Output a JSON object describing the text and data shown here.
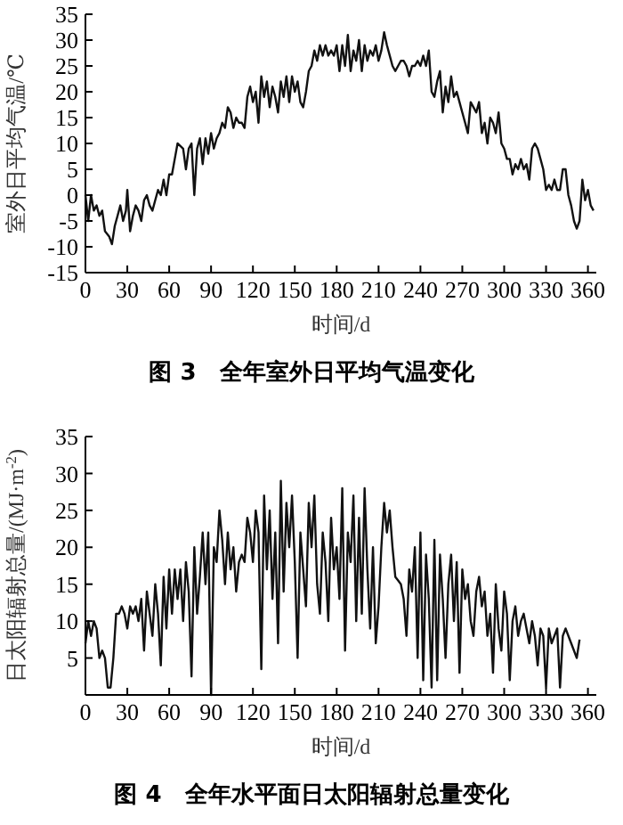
{
  "chart_data": [
    {
      "type": "line",
      "title": "图 3　全年室外日平均气温变化",
      "xlabel": "时间/d",
      "ylabel": "室外日平均气温/℃",
      "color": "#111111",
      "xlim": [
        0,
        366
      ],
      "xticks": [
        0,
        30,
        60,
        90,
        120,
        150,
        180,
        210,
        240,
        270,
        300,
        330,
        360
      ],
      "ylim": [
        -15,
        35
      ],
      "yticks": [
        -15,
        -10,
        -5,
        0,
        5,
        10,
        15,
        20,
        25,
        30,
        35
      ],
      "x": [
        0,
        2,
        4,
        6,
        8,
        10,
        12,
        14,
        17,
        19,
        21,
        23,
        25,
        27,
        29,
        30,
        32,
        34,
        36,
        38,
        40,
        42,
        44,
        46,
        48,
        50,
        52,
        54,
        56,
        58,
        60,
        62,
        64,
        66,
        68,
        70,
        72,
        74,
        76,
        78,
        80,
        82,
        84,
        86,
        88,
        90,
        92,
        94,
        96,
        98,
        100,
        102,
        104,
        106,
        108,
        110,
        112,
        114,
        116,
        118,
        120,
        122,
        124,
        126,
        128,
        130,
        132,
        134,
        136,
        138,
        140,
        142,
        144,
        146,
        148,
        150,
        152,
        154,
        156,
        158,
        160,
        162,
        164,
        166,
        168,
        170,
        172,
        174,
        176,
        178,
        180,
        182,
        184,
        186,
        188,
        190,
        192,
        194,
        196,
        198,
        200,
        202,
        204,
        206,
        208,
        210,
        212,
        214,
        216,
        218,
        220,
        222,
        224,
        226,
        228,
        230,
        232,
        234,
        236,
        238,
        240,
        242,
        244,
        246,
        248,
        250,
        252,
        254,
        256,
        258,
        260,
        262,
        264,
        266,
        268,
        270,
        272,
        274,
        276,
        278,
        280,
        282,
        284,
        286,
        288,
        290,
        292,
        294,
        296,
        298,
        300,
        302,
        304,
        306,
        308,
        310,
        312,
        314,
        316,
        318,
        320,
        322,
        324,
        326,
        328,
        330,
        332,
        334,
        336,
        338,
        340,
        342,
        344,
        346,
        348,
        350,
        352,
        354,
        356,
        358,
        360,
        362,
        364
      ],
      "values": [
        0,
        -5,
        0,
        -3,
        -2,
        -4,
        -3,
        -7,
        -8,
        -9.5,
        -6,
        -4,
        -2,
        -5,
        -3,
        1,
        -7,
        -4,
        -2,
        -3,
        -5,
        -1,
        0,
        -2,
        -3,
        -1,
        1,
        0,
        3,
        0,
        4,
        4,
        7,
        10,
        9.5,
        9,
        5,
        9,
        10,
        0,
        9,
        11,
        6,
        11,
        8,
        12,
        9,
        11,
        12,
        14,
        13,
        17,
        16,
        13,
        15,
        14,
        14,
        13,
        19,
        21,
        18,
        20,
        14,
        23,
        19,
        22,
        17,
        21,
        19,
        16,
        22,
        19,
        23,
        18,
        23,
        20,
        22,
        18,
        17,
        20,
        24,
        25,
        28,
        26,
        29,
        27,
        29,
        27,
        28,
        27,
        29,
        24,
        29,
        25,
        31,
        24,
        28,
        26,
        30,
        24,
        29,
        26,
        28,
        27,
        29,
        26,
        28,
        31.5,
        29,
        27,
        25,
        24,
        25,
        26,
        26,
        25,
        23,
        25,
        25,
        26,
        25,
        27,
        25,
        28,
        20,
        19,
        22,
        24,
        16,
        21,
        18,
        23,
        19,
        20,
        18,
        16,
        14,
        12,
        18,
        17,
        16,
        18,
        12,
        14,
        10,
        15,
        14,
        12,
        16,
        10,
        9,
        7,
        7,
        4,
        6,
        5,
        7,
        5,
        6,
        3,
        9,
        10,
        9,
        7,
        5,
        1,
        2,
        1,
        3,
        1,
        1,
        5,
        5,
        0,
        -2,
        -5,
        -6.5,
        -5,
        3,
        -1,
        1,
        -2,
        -3
      ]
    },
    {
      "type": "line",
      "title": "图 4　全年水平面日太阳辐射总量变化",
      "xlabel": "时间/d",
      "ylabel": "日太阳辐射总量/(MJ·m$^{-2}$)",
      "color": "#111111",
      "xlim": [
        0,
        366
      ],
      "xticks": [
        0,
        30,
        60,
        90,
        120,
        150,
        180,
        210,
        240,
        270,
        300,
        330,
        360
      ],
      "ylim": [
        0,
        35
      ],
      "yticks": [
        5,
        10,
        15,
        20,
        25,
        30,
        35
      ],
      "x": [
        0,
        2,
        4,
        6,
        8,
        10,
        12,
        14,
        16,
        18,
        20,
        22,
        24,
        26,
        28,
        30,
        32,
        34,
        36,
        38,
        40,
        42,
        44,
        46,
        48,
        50,
        52,
        54,
        56,
        58,
        60,
        62,
        64,
        66,
        68,
        70,
        72,
        74,
        76,
        78,
        80,
        82,
        84,
        86,
        88,
        90,
        92,
        94,
        96,
        98,
        100,
        102,
        104,
        106,
        108,
        110,
        112,
        114,
        116,
        118,
        120,
        122,
        124,
        126,
        128,
        130,
        132,
        134,
        136,
        138,
        140,
        142,
        144,
        146,
        148,
        150,
        152,
        154,
        156,
        158,
        160,
        162,
        164,
        166,
        168,
        170,
        172,
        174,
        176,
        178,
        180,
        182,
        184,
        186,
        188,
        190,
        192,
        194,
        196,
        198,
        200,
        202,
        204,
        206,
        208,
        210,
        212,
        214,
        216,
        218,
        220,
        222,
        224,
        226,
        228,
        230,
        232,
        234,
        236,
        238,
        240,
        242,
        244,
        246,
        248,
        250,
        252,
        254,
        256,
        258,
        260,
        262,
        264,
        266,
        268,
        270,
        272,
        274,
        276,
        278,
        280,
        282,
        284,
        286,
        288,
        290,
        292,
        294,
        296,
        298,
        300,
        302,
        304,
        306,
        308,
        310,
        312,
        314,
        316,
        318,
        320,
        322,
        324,
        326,
        328,
        330,
        332,
        334,
        336,
        338,
        340,
        342,
        344,
        346,
        348,
        350,
        352,
        354
      ],
      "values": [
        7,
        10,
        8,
        10,
        9,
        5,
        6,
        5,
        1,
        1,
        5,
        11,
        11,
        12,
        11,
        9,
        12,
        11,
        12,
        10,
        13,
        6,
        14,
        11,
        8,
        15,
        11,
        4,
        16,
        9,
        17,
        11,
        17,
        13,
        17,
        10,
        18,
        14,
        2.5,
        20,
        11,
        16,
        22,
        15,
        22,
        0,
        20,
        18,
        25,
        21,
        15,
        22,
        17,
        20,
        14,
        18,
        19,
        18,
        24,
        22,
        18,
        25,
        22,
        3.5,
        27,
        17,
        25,
        13,
        22,
        7,
        29,
        14,
        26,
        20,
        27,
        18,
        5,
        22,
        17,
        12,
        26,
        20,
        27,
        15,
        11,
        22,
        18,
        10,
        24,
        17,
        20,
        13,
        28,
        6,
        22,
        18,
        27,
        10,
        24,
        11,
        28,
        17,
        9,
        20,
        7,
        12,
        20,
        26,
        22,
        25,
        20,
        16,
        15.5,
        15,
        13,
        8,
        17,
        14,
        20,
        5,
        22,
        2,
        19,
        13,
        1,
        21,
        2,
        19,
        13,
        5,
        15,
        19,
        10,
        18,
        3,
        17,
        13,
        15,
        10,
        8,
        14,
        16,
        12,
        14,
        8,
        11,
        3,
        15,
        9,
        6,
        14,
        11,
        2,
        10,
        12,
        8,
        10,
        11,
        9,
        7,
        10,
        8,
        4,
        9,
        8,
        1,
        9,
        7,
        8,
        9,
        1,
        8,
        9,
        8,
        7,
        6,
        5,
        7.5
      ]
    }
  ]
}
